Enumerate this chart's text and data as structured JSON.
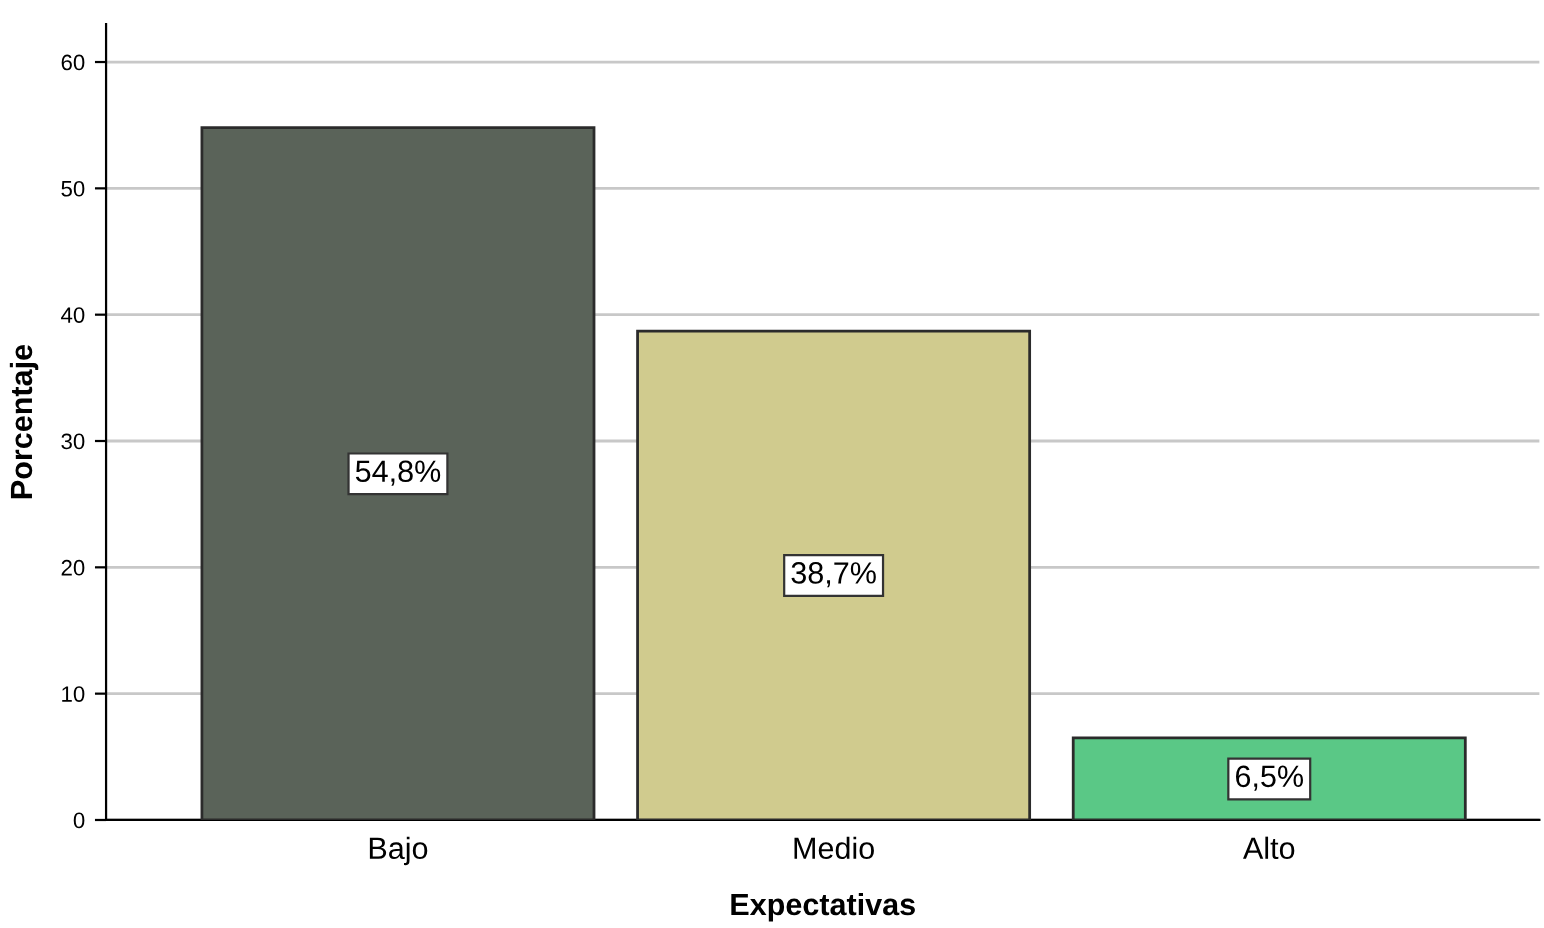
{
  "chart_data": {
    "type": "bar",
    "xlabel": "Expectativas",
    "ylabel": "Porcentaje",
    "categories": [
      "Bajo",
      "Medio",
      "Alto"
    ],
    "values": [
      54.8,
      38.7,
      6.5
    ],
    "colors": [
      "#5a6359",
      "#d0cb8e",
      "#5ac886"
    ],
    "value_labels": [
      "54,8%",
      "38,7%",
      "6,5%"
    ],
    "ylim": [
      0,
      63
    ],
    "yticks": [
      0,
      10,
      20,
      30,
      40,
      50,
      60
    ],
    "grid": "y",
    "legend": false
  }
}
